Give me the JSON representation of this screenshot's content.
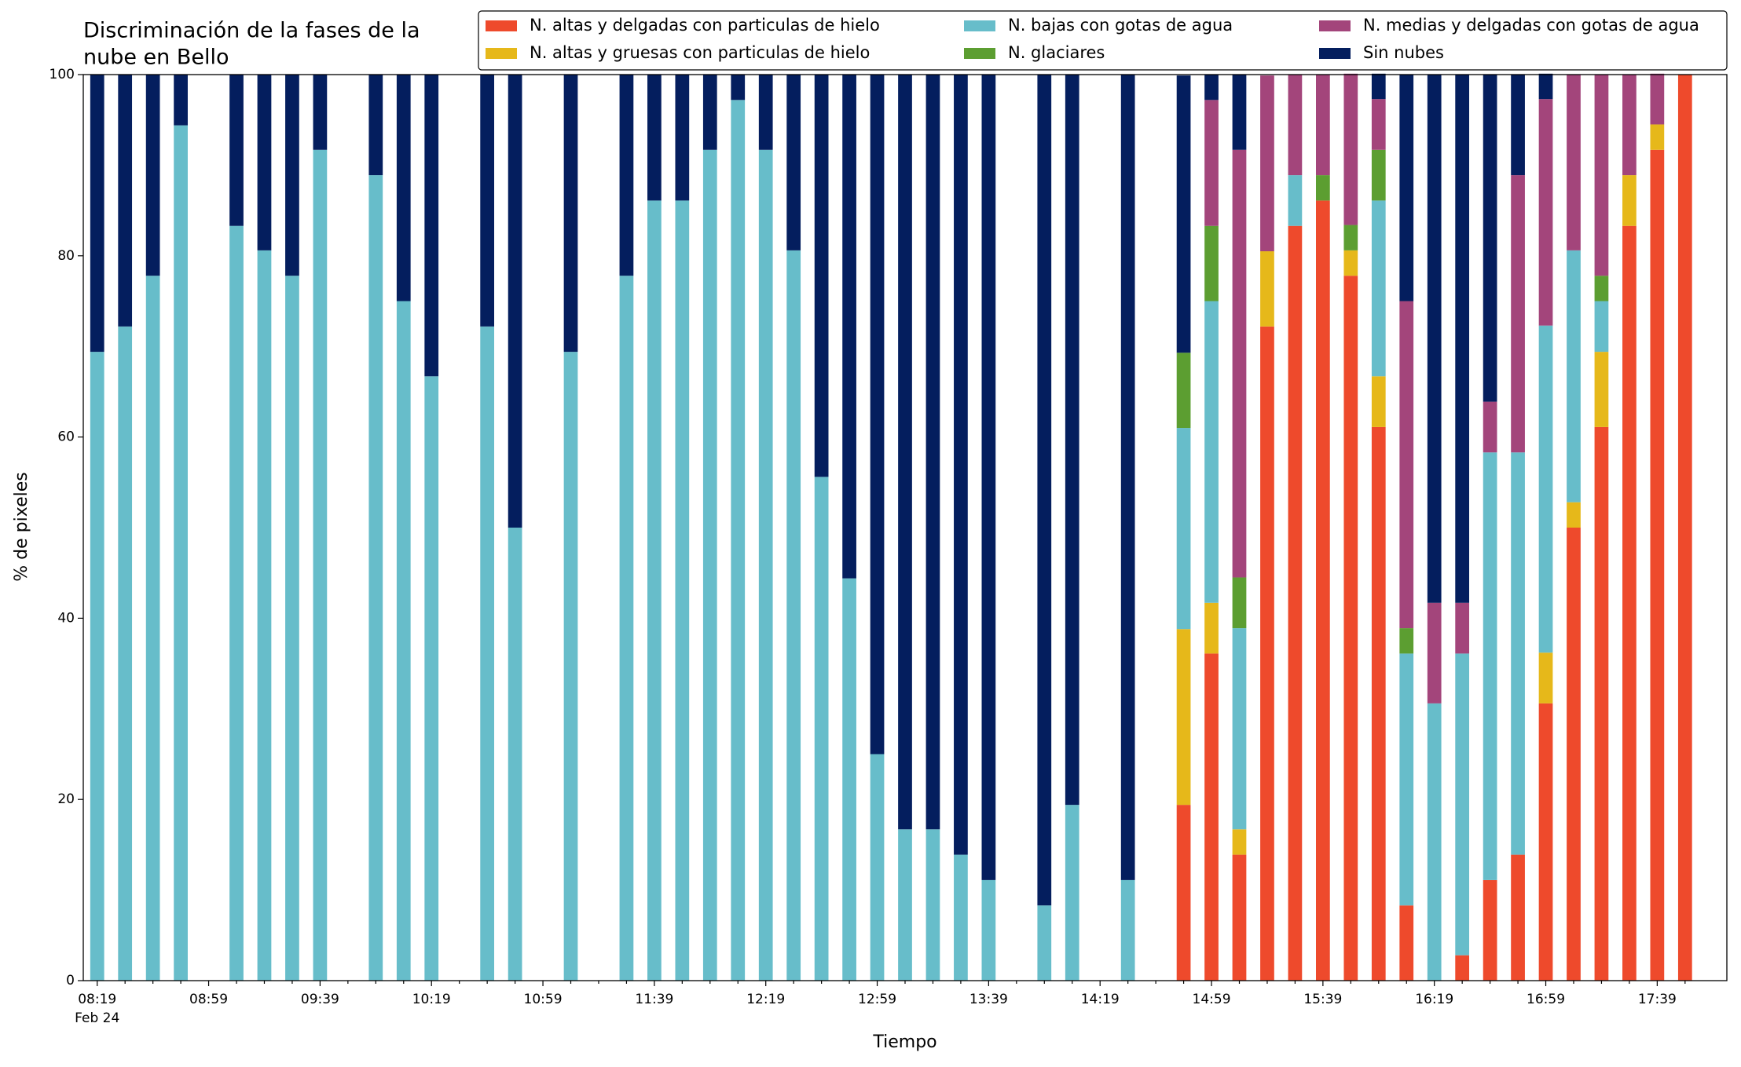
{
  "chart_data": {
    "type": "stacked_bar",
    "title": [
      "Discriminación de la fases de la",
      "nube en Bello"
    ],
    "xlabel": "Tiempo",
    "x_sublabel": "Feb 24",
    "ylabel": "% de pixeles",
    "categories": [
      "08:19",
      null,
      null,
      null,
      "08:59",
      null,
      null,
      null,
      "09:39",
      null,
      null,
      null,
      "10:19",
      null,
      null,
      null,
      "10:59",
      null,
      null,
      null,
      "11:39",
      null,
      null,
      null,
      "12:19",
      null,
      null,
      null,
      "12:59",
      null,
      null,
      null,
      "13:39",
      null,
      null,
      null,
      "14:19",
      null,
      null,
      null,
      "14:59",
      null,
      null,
      null,
      "15:39",
      null,
      null,
      null,
      "16:19",
      null,
      null,
      null,
      "16:59",
      null,
      null,
      null,
      "17:39",
      null
    ],
    "ylim": [
      0,
      100
    ],
    "yticks": [
      0,
      20,
      40,
      60,
      80,
      100
    ],
    "grid": false,
    "legend": "top",
    "series": [
      {
        "name": "N. altas y delgadas con particulas de hielo",
        "color": "#ee4a2c",
        "values": [
          0,
          0,
          0,
          0,
          null,
          0,
          0,
          0,
          0,
          null,
          0,
          0,
          0,
          null,
          0,
          0,
          null,
          0,
          null,
          0,
          0,
          0,
          0,
          0,
          0,
          0,
          0,
          0,
          0,
          0,
          0,
          0,
          0,
          null,
          0,
          0,
          null,
          0,
          null,
          19.4,
          36.1,
          13.9,
          72.2,
          83.3,
          86.1,
          77.8,
          61.1,
          8.3,
          0,
          2.8,
          11.1,
          13.9,
          30.6,
          50,
          61.1,
          83.3,
          91.7,
          100
        ]
      },
      {
        "name": "N. altas y gruesas con particulas de hielo",
        "color": "#e6b81a",
        "values": [
          0,
          0,
          0,
          0,
          null,
          0,
          0,
          0,
          0,
          null,
          0,
          0,
          0,
          null,
          0,
          0,
          null,
          0,
          null,
          0,
          0,
          0,
          0,
          0,
          0,
          0,
          0,
          0,
          0,
          0,
          0,
          0,
          0,
          null,
          0,
          0,
          null,
          0,
          null,
          19.4,
          5.6,
          2.8,
          8.3,
          0,
          0,
          2.8,
          5.6,
          0,
          0,
          0,
          0,
          0,
          5.6,
          2.8,
          8.3,
          5.6,
          2.8,
          0
        ]
      },
      {
        "name": "N. bajas con gotas de agua",
        "color": "#67bdca",
        "values": [
          69.4,
          72.2,
          77.8,
          94.4,
          null,
          83.3,
          80.6,
          77.8,
          91.7,
          null,
          88.9,
          75,
          66.7,
          null,
          72.2,
          50,
          null,
          69.4,
          null,
          77.8,
          86.1,
          86.1,
          91.7,
          97.2,
          91.7,
          80.6,
          55.6,
          44.4,
          25,
          16.7,
          16.7,
          13.9,
          11.1,
          null,
          8.3,
          19.4,
          null,
          11.1,
          null,
          22.2,
          33.3,
          22.2,
          0,
          5.6,
          0,
          0,
          19.4,
          27.8,
          30.6,
          33.3,
          47.2,
          44.4,
          36.1,
          27.8,
          5.6,
          0,
          0,
          0
        ]
      },
      {
        "name": "N. glaciares",
        "color": "#5c9e31",
        "values": [
          0,
          0,
          0,
          0,
          null,
          0,
          0,
          0,
          0,
          null,
          0,
          0,
          0,
          null,
          0,
          0,
          null,
          0,
          null,
          0,
          0,
          0,
          0,
          0,
          0,
          0,
          0,
          0,
          0,
          0,
          0,
          0,
          0,
          null,
          0,
          0,
          null,
          0,
          null,
          8.3,
          8.3,
          5.6,
          0,
          0,
          2.8,
          2.8,
          5.6,
          2.8,
          0,
          0,
          0,
          0,
          0,
          0,
          2.8,
          0,
          0,
          0
        ]
      },
      {
        "name": "N. medias y delgadas con gotas de agua",
        "color": "#a3457b",
        "values": [
          0,
          0,
          0,
          0,
          null,
          0,
          0,
          0,
          0,
          null,
          0,
          0,
          0,
          null,
          0,
          0,
          null,
          0,
          null,
          0,
          0,
          0,
          0,
          0,
          0,
          0,
          0,
          0,
          0,
          0,
          0,
          0,
          0,
          null,
          0,
          0,
          null,
          0,
          null,
          0,
          13.9,
          47.2,
          19.4,
          11.1,
          11.1,
          16.7,
          5.6,
          36.1,
          11.1,
          5.6,
          5.6,
          30.6,
          25,
          19.4,
          22.2,
          11.1,
          5.6,
          0
        ]
      },
      {
        "name": "Sin nubes",
        "color": "#041e5e",
        "values": [
          30.6,
          27.8,
          22.2,
          5.6,
          null,
          16.7,
          19.4,
          22.2,
          8.3,
          null,
          11.1,
          25,
          33.3,
          null,
          27.8,
          50,
          null,
          30.6,
          null,
          22.2,
          13.9,
          13.9,
          8.3,
          2.8,
          8.3,
          19.4,
          44.4,
          55.6,
          75,
          83.3,
          83.3,
          86.1,
          88.9,
          null,
          91.7,
          80.6,
          null,
          88.9,
          null,
          30.6,
          2.8,
          8.3,
          0,
          0,
          0,
          0,
          2.8,
          25,
          58.3,
          58.3,
          36.1,
          11.1,
          2.8,
          0,
          0,
          0,
          0,
          0
        ]
      }
    ]
  }
}
